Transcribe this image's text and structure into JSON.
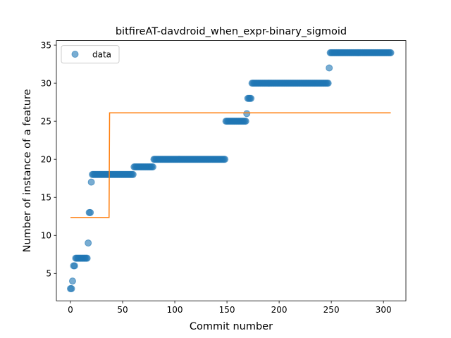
{
  "chart_data": {
    "type": "scatter",
    "title": "bitfireAT-davdroid_when_expr-binary_sigmoid",
    "xlabel": "Commit number",
    "ylabel": "Number of instance of a feature",
    "xlim": [
      -13.5,
      321.5
    ],
    "ylim": [
      1.4,
      35.6
    ],
    "xticks": [
      0,
      50,
      100,
      150,
      200,
      250,
      300
    ],
    "yticks": [
      5,
      10,
      15,
      20,
      25,
      30,
      35
    ],
    "grid": false,
    "legend": {
      "position": "top-left",
      "entries": [
        "data"
      ]
    },
    "colors": {
      "data": "#1f77b4",
      "fit": "#ff7f0e"
    },
    "series": [
      {
        "name": "data",
        "type": "scatter",
        "segments": [
          {
            "x": [
              0,
              1
            ],
            "y": 3
          },
          {
            "x": [
              2,
              2
            ],
            "y": 4
          },
          {
            "x": [
              3,
              4
            ],
            "y": 6
          },
          {
            "x": [
              5,
              16
            ],
            "y": 7
          },
          {
            "x": [
              17,
              17
            ],
            "y": 9
          },
          {
            "x": [
              18,
              19
            ],
            "y": 13
          },
          {
            "x": [
              20,
              20
            ],
            "y": 17
          },
          {
            "x": [
              21,
              60
            ],
            "y": 18
          },
          {
            "x": [
              61,
              79
            ],
            "y": 19
          },
          {
            "x": [
              80,
              148
            ],
            "y": 20
          },
          {
            "x": [
              149,
              168
            ],
            "y": 25
          },
          {
            "x": [
              169,
              169
            ],
            "y": 26
          },
          {
            "x": [
              170,
              173
            ],
            "y": 28
          },
          {
            "x": [
              174,
              247
            ],
            "y": 30
          },
          {
            "x": [
              248,
              248
            ],
            "y": 32
          },
          {
            "x": [
              249,
              307
            ],
            "y": 34
          }
        ]
      },
      {
        "name": "",
        "type": "line",
        "x": [
          0,
          37,
          37,
          37.5,
          307
        ],
        "y": [
          12.35,
          12.35,
          12.4,
          26.1,
          26.1
        ]
      }
    ]
  }
}
